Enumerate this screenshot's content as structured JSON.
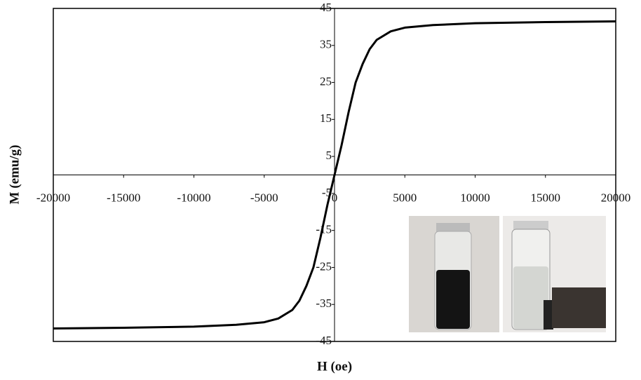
{
  "chart_data": {
    "type": "line",
    "x_label": "H (oe)",
    "y_label": "M (emu/g)",
    "x": [
      -20000,
      -15000,
      -10000,
      -7000,
      -5000,
      -4000,
      -3000,
      -2500,
      -2000,
      -1500,
      -1000,
      -500,
      0,
      500,
      1000,
      1500,
      2000,
      2500,
      3000,
      4000,
      5000,
      7000,
      10000,
      15000,
      20000
    ],
    "values": [
      -41.5,
      -41.3,
      -41,
      -40.5,
      -39.8,
      -38.8,
      -36.5,
      -34,
      -30,
      -25,
      -17,
      -8,
      0,
      8,
      17,
      25,
      30,
      34,
      36.5,
      38.8,
      39.8,
      40.5,
      41,
      41.3,
      41.5
    ],
    "color": "#000000",
    "xlim": [
      -20000,
      20000
    ],
    "xticks": [
      -20000,
      -15000,
      -10000,
      -5000,
      0,
      5000,
      10000,
      15000,
      20000
    ],
    "ylim": [
      -45,
      45
    ],
    "yticks": [
      -45,
      -35,
      -25,
      -15,
      -5,
      5,
      15,
      25,
      35,
      45
    ],
    "grid": false
  }
}
